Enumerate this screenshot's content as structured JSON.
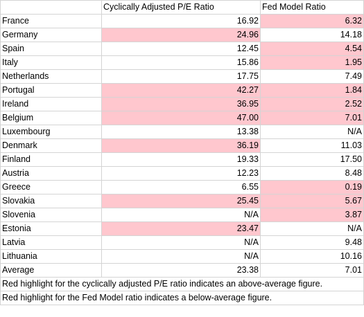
{
  "headers": [
    "",
    "Cyclically Adjusted P/E Ratio",
    "Fed Model Ratio"
  ],
  "rows": [
    {
      "country": "France",
      "cape": "16.92",
      "cape_hl": false,
      "fed": "6.32",
      "fed_hl": true
    },
    {
      "country": "Germany",
      "cape": "24.96",
      "cape_hl": true,
      "fed": "14.18",
      "fed_hl": false
    },
    {
      "country": "Spain",
      "cape": "12.45",
      "cape_hl": false,
      "fed": "4.54",
      "fed_hl": true
    },
    {
      "country": "Italy",
      "cape": "15.86",
      "cape_hl": false,
      "fed": "1.95",
      "fed_hl": true
    },
    {
      "country": "Netherlands",
      "cape": "17.75",
      "cape_hl": false,
      "fed": "7.49",
      "fed_hl": false
    },
    {
      "country": "Portugal",
      "cape": "42.27",
      "cape_hl": true,
      "fed": "1.84",
      "fed_hl": true
    },
    {
      "country": "Ireland",
      "cape": "36.95",
      "cape_hl": true,
      "fed": "2.52",
      "fed_hl": true
    },
    {
      "country": "Belgium",
      "cape": "47.00",
      "cape_hl": true,
      "fed": "7.01",
      "fed_hl": true
    },
    {
      "country": "Luxembourg",
      "cape": "13.38",
      "cape_hl": false,
      "fed": "N/A",
      "fed_hl": false
    },
    {
      "country": "Denmark",
      "cape": "36.19",
      "cape_hl": true,
      "fed": "11.03",
      "fed_hl": false
    },
    {
      "country": "Finland",
      "cape": "19.33",
      "cape_hl": false,
      "fed": "17.50",
      "fed_hl": false
    },
    {
      "country": "Austria",
      "cape": "12.23",
      "cape_hl": false,
      "fed": "8.48",
      "fed_hl": false
    },
    {
      "country": "Greece",
      "cape": "6.55",
      "cape_hl": false,
      "fed": "0.19",
      "fed_hl": true
    },
    {
      "country": "Slovakia",
      "cape": "25.45",
      "cape_hl": true,
      "fed": "5.67",
      "fed_hl": true
    },
    {
      "country": "Slovenia",
      "cape": "N/A",
      "cape_hl": false,
      "fed": "3.87",
      "fed_hl": true
    },
    {
      "country": "Estonia",
      "cape": "23.47",
      "cape_hl": true,
      "fed": "N/A",
      "fed_hl": false
    },
    {
      "country": "Latvia",
      "cape": "N/A",
      "cape_hl": false,
      "fed": "9.48",
      "fed_hl": false
    },
    {
      "country": "Lithuania",
      "cape": "N/A",
      "cape_hl": false,
      "fed": "10.16",
      "fed_hl": false
    },
    {
      "country": "Average",
      "cape": "23.38",
      "cape_hl": false,
      "fed": "7.01",
      "fed_hl": false
    }
  ],
  "notes": [
    "Red highlight for the cyclically adjusted P/E ratio indicates an above-average figure.",
    "Red highlight for the Fed Model ratio indicates a below-average figure."
  ],
  "colors": {
    "highlight": "#ffc7ce",
    "grid": "#d4d4d4"
  }
}
